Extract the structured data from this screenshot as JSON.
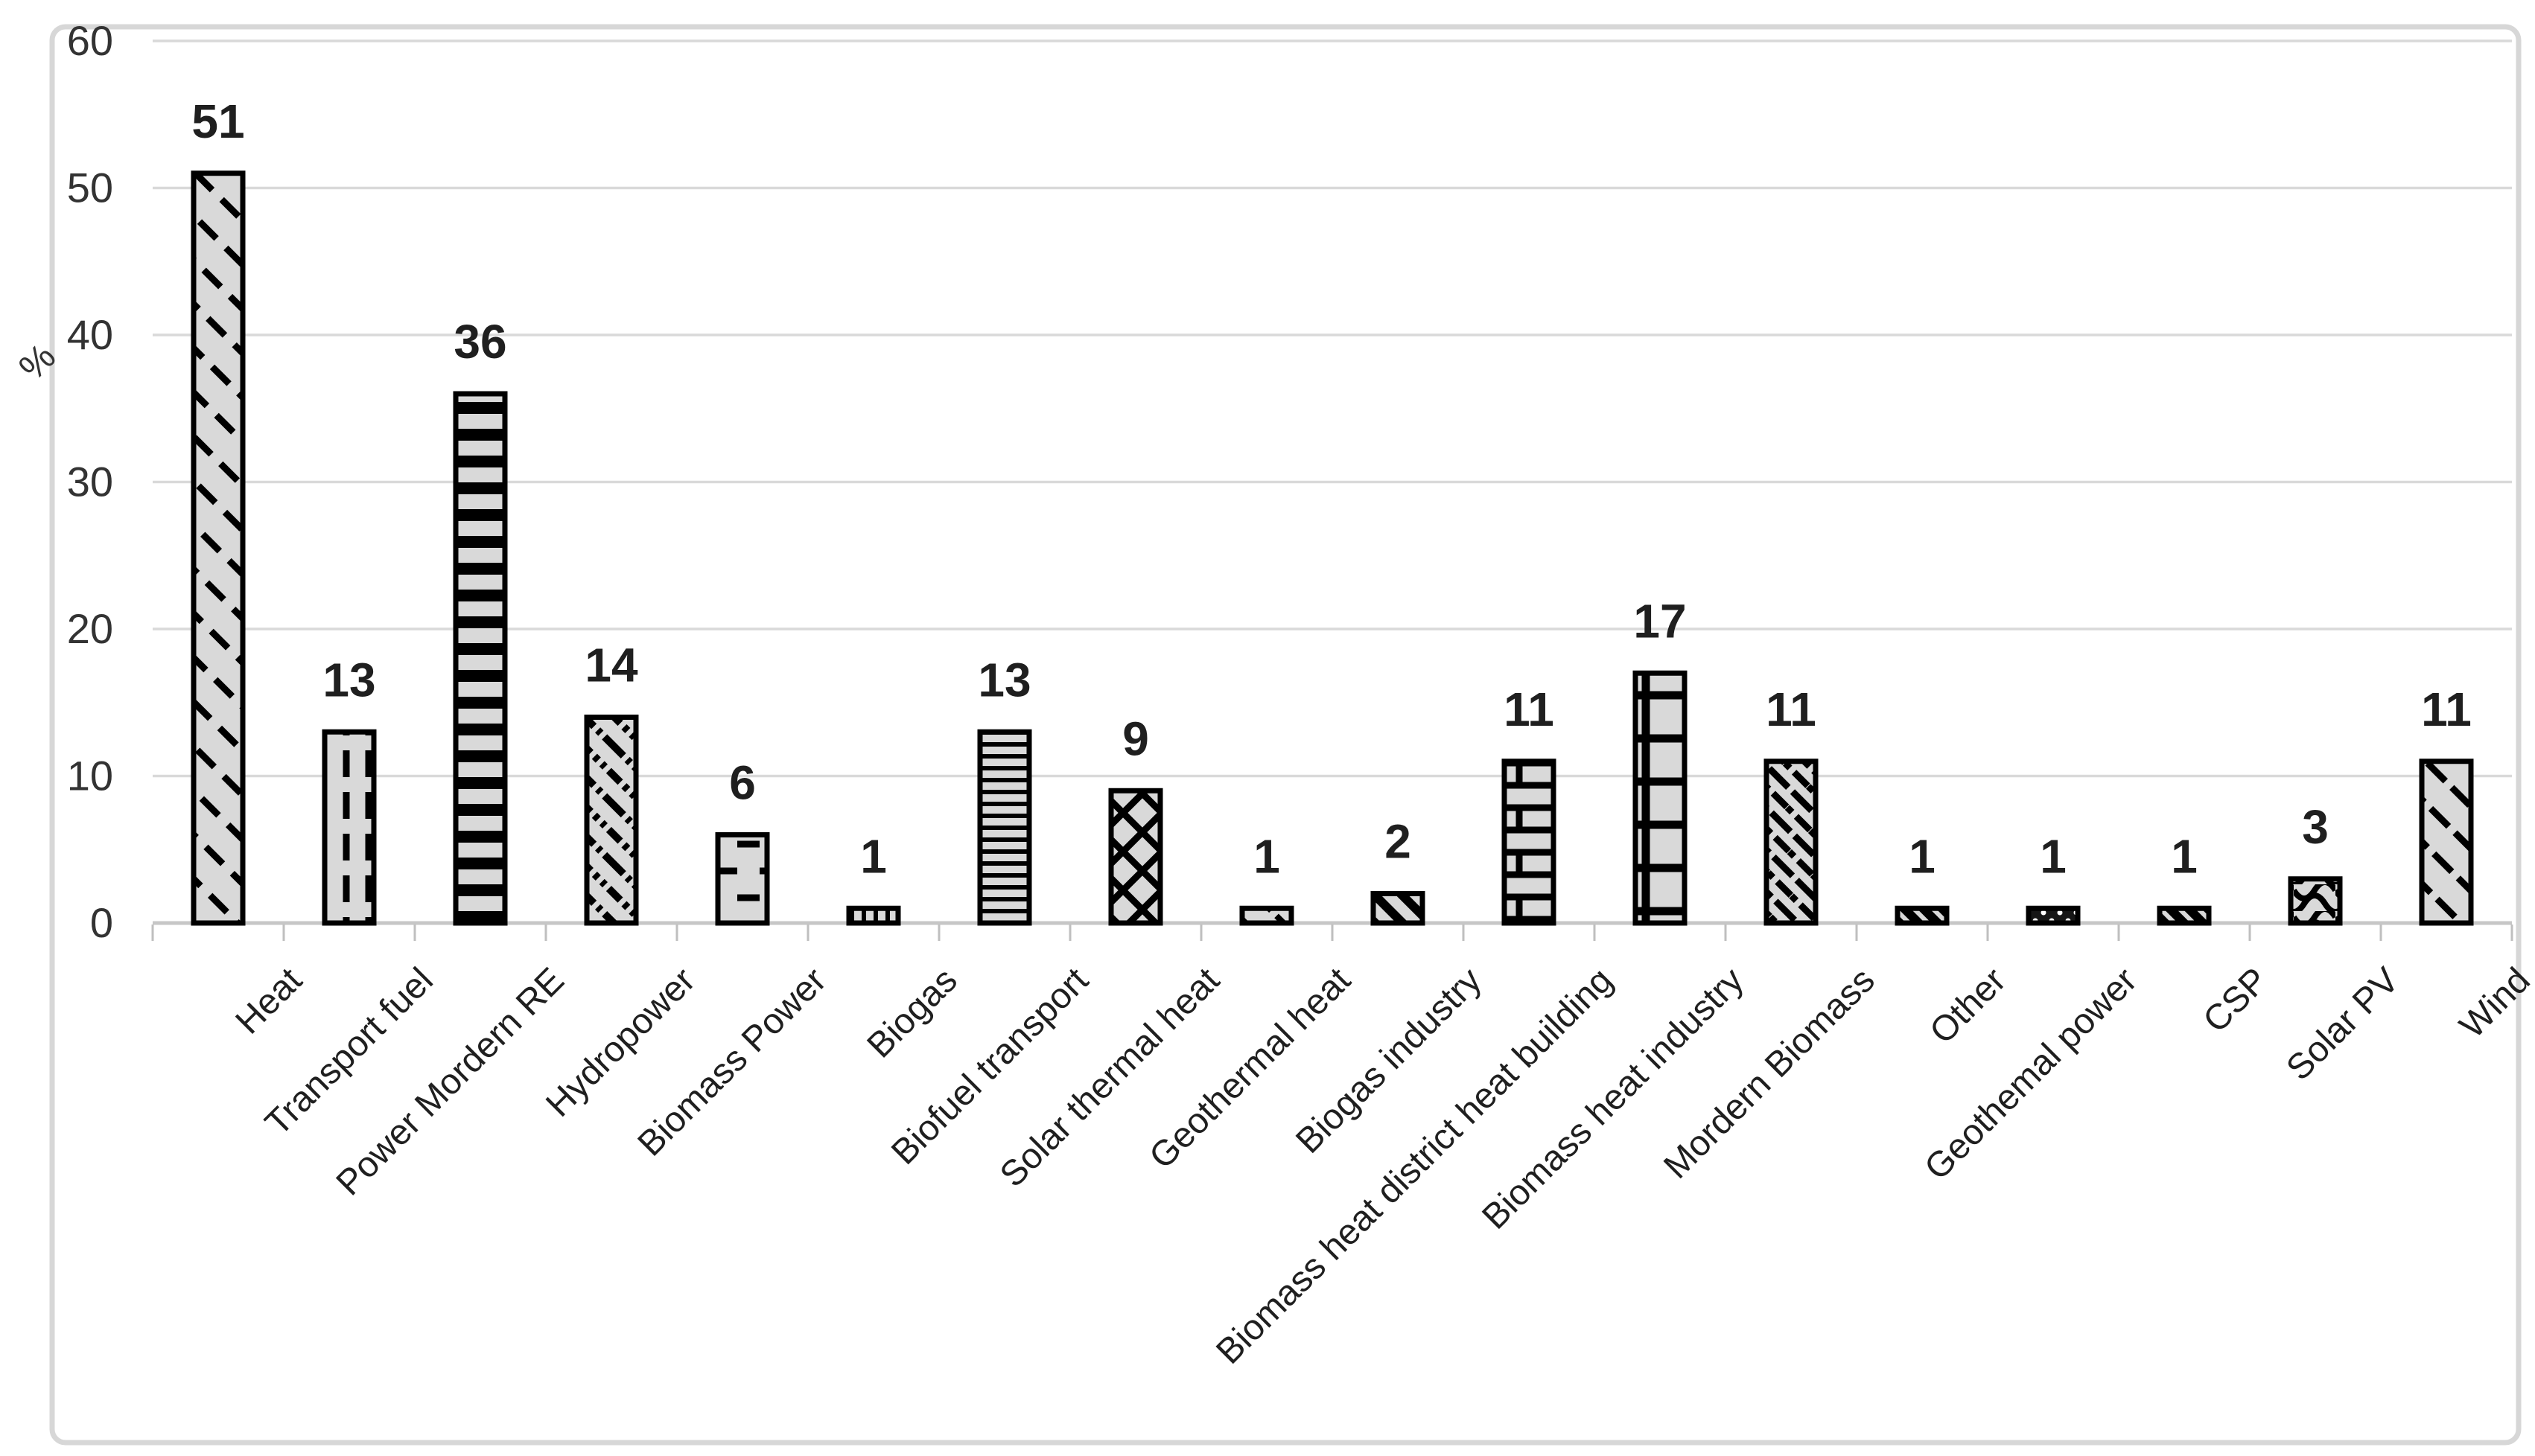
{
  "chart_data": {
    "type": "bar",
    "title": "",
    "xlabel": "",
    "ylabel": "%",
    "ylim": [
      0,
      60
    ],
    "yticks": [
      0,
      10,
      20,
      30,
      40,
      50,
      60
    ],
    "grid": true,
    "legend": false,
    "value_labels_shown": true,
    "categories": [
      "Heat",
      "Transport fuel",
      "Power Mordern RE",
      "Hydropower",
      "Biomass Power",
      "Biogas",
      "Biofuel transport",
      "Solar thermal heat",
      "Geothermal heat",
      "Biogas industry",
      "Biomass heat district heat building",
      "Biomass heat industry",
      "Mordern Biomass",
      "Other",
      "Geothemal power",
      "CSP",
      "Solar PV",
      "Wind"
    ],
    "values": [
      51,
      13,
      36,
      14,
      6,
      1,
      13,
      9,
      1,
      2,
      11,
      17,
      11,
      1,
      1,
      1,
      3,
      11
    ],
    "bar_patterns": [
      "diagonal-dash",
      "vertical-dash",
      "horizontal-stripes",
      "diagonal-dash-dot",
      "horizontal-dash",
      "fine-vertical",
      "fine-horizontal",
      "diamond-crosshatch",
      "diagonal-dash-small",
      "diagonal-stripes",
      "brick",
      "large-grid",
      "dense-diagonal-weave",
      "dark-mixed",
      "dots-on-dark",
      "dark-mixed",
      "shingle-wave",
      "diagonal-dash-wind"
    ],
    "colors": {
      "bar_fill": "#d9d9d9",
      "bar_border": "#000000",
      "pattern_stroke": "#000000",
      "gridline": "#d9d9d9",
      "axis_line": "#c6c6c6",
      "tick": "#bfbfbf",
      "label_text": "#1f1f1f",
      "axis_text": "#333333",
      "chart_border": "#d7d7d7",
      "background": "#ffffff",
      "dark_pattern_bg": "#161616",
      "dot_color": "#ffffff"
    }
  }
}
